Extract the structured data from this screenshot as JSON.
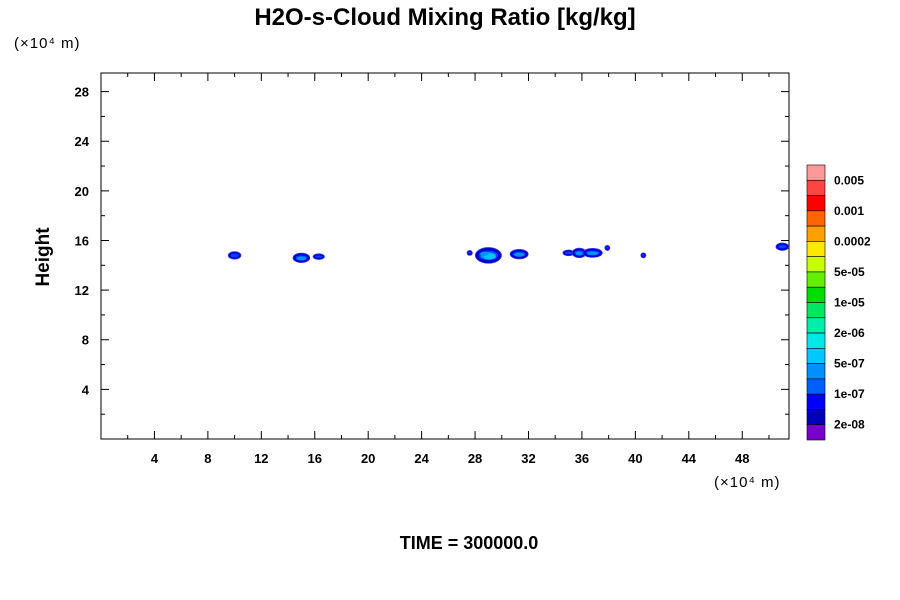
{
  "chart_data": {
    "type": "contour",
    "title": "H2O-s-Cloud Mixing Ratio [kg/kg]",
    "ylabel": "Height",
    "xlabel": "",
    "x_unit_label": "(×10⁴ m)",
    "y_unit_label": "(×10⁴ m)",
    "time_label": "TIME = 300000.0",
    "xlim": [
      0,
      51.5
    ],
    "ylim": [
      0,
      29.5
    ],
    "xticks": [
      "4",
      "8",
      "12",
      "16",
      "20",
      "24",
      "28",
      "32",
      "36",
      "40",
      "44",
      "48"
    ],
    "yticks": [
      "4",
      "8",
      "12",
      "16",
      "20",
      "24",
      "28"
    ],
    "grid": false,
    "colorbar": {
      "levels": [
        "0.005",
        "0.001",
        "0.0002",
        "5e-05",
        "1e-05",
        "2e-06",
        "5e-07",
        "1e-07",
        "2e-08"
      ],
      "colors_top_to_bottom": [
        "#ff9999",
        "#ff4444",
        "#ff0000",
        "#ff6600",
        "#ffa000",
        "#ffe800",
        "#c8ff00",
        "#66ee00",
        "#00dd00",
        "#00e860",
        "#00eeaa",
        "#00e8e8",
        "#00c8ff",
        "#0090ff",
        "#0060ff",
        "#0000ff",
        "#0000bb",
        "#7700cc"
      ]
    },
    "features": [
      {
        "x": 10.0,
        "y": 14.8,
        "rx": 0.4,
        "ry": 0.22,
        "level": "outer"
      },
      {
        "x": 15.0,
        "y": 14.6,
        "rx": 0.55,
        "ry": 0.3,
        "level": "inner"
      },
      {
        "x": 16.3,
        "y": 14.7,
        "rx": 0.35,
        "ry": 0.15,
        "level": "outer"
      },
      {
        "x": 27.6,
        "y": 15.0,
        "rx": 0.12,
        "ry": 0.12,
        "level": "outer"
      },
      {
        "x": 29.0,
        "y": 14.8,
        "rx": 0.9,
        "ry": 0.55,
        "level": "core"
      },
      {
        "x": 31.3,
        "y": 14.9,
        "rx": 0.6,
        "ry": 0.3,
        "level": "inner"
      },
      {
        "x": 35.0,
        "y": 15.0,
        "rx": 0.35,
        "ry": 0.15,
        "level": "outer"
      },
      {
        "x": 35.8,
        "y": 15.0,
        "rx": 0.45,
        "ry": 0.3,
        "level": "inner"
      },
      {
        "x": 36.8,
        "y": 15.0,
        "rx": 0.65,
        "ry": 0.28,
        "level": "inner"
      },
      {
        "x": 37.9,
        "y": 15.4,
        "rx": 0.1,
        "ry": 0.1,
        "level": "outer"
      },
      {
        "x": 40.6,
        "y": 14.8,
        "rx": 0.1,
        "ry": 0.12,
        "level": "outer"
      },
      {
        "x": 51.0,
        "y": 15.5,
        "rx": 0.4,
        "ry": 0.22,
        "level": "outer"
      }
    ]
  }
}
